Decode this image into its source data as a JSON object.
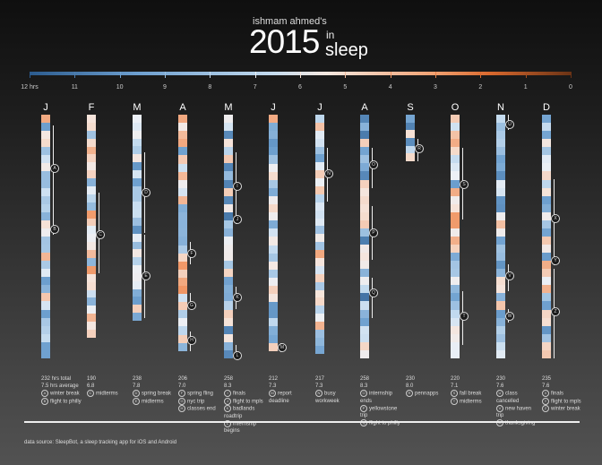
{
  "title": {
    "author": "ishmam ahmed's",
    "year": "2015",
    "in": "in",
    "sleep": "sleep"
  },
  "chart_data": {
    "type": "heatmap",
    "title": "ishmam ahmed's 2015 in sleep",
    "legend": {
      "ticks": [
        "12 hrs",
        "11",
        "10",
        "9",
        "8",
        "7",
        "6",
        "5",
        "4",
        "3",
        "2",
        "1",
        "0"
      ],
      "range": [
        12,
        0
      ]
    },
    "months": [
      {
        "label": "J",
        "total": "232 hrs total",
        "avg": "7.5 hrs average",
        "events": [
          [
            "A",
            "winter break"
          ],
          [
            "B",
            "flight to philly"
          ]
        ]
      },
      {
        "label": "F",
        "total": "190",
        "avg": "6.8",
        "events": [
          [
            "C",
            "midterms"
          ]
        ]
      },
      {
        "label": "M",
        "total": "238",
        "avg": "7.8",
        "events": [
          [
            "D",
            "spring break"
          ],
          [
            "E",
            "midterms"
          ]
        ]
      },
      {
        "label": "A",
        "total": "206",
        "avg": "7.0",
        "events": [
          [
            "F",
            "spring fling"
          ],
          [
            "G",
            "nyc trip"
          ],
          [
            "H",
            "classes end"
          ]
        ]
      },
      {
        "label": "M",
        "total": "258",
        "avg": "8.3",
        "events": [
          [
            "I",
            "finals"
          ],
          [
            "J",
            "flight to mpls"
          ],
          [
            "K",
            "badlands roadtrip"
          ],
          [
            "L",
            "internship begins"
          ]
        ]
      },
      {
        "label": "J",
        "total": "212",
        "avg": "7.3",
        "events": [
          [
            "M",
            "report deadline"
          ]
        ]
      },
      {
        "label": "J",
        "total": "217",
        "avg": "7.3",
        "events": [
          [
            "N",
            "busy workweek"
          ]
        ]
      },
      {
        "label": "A",
        "total": "258",
        "avg": "8.3",
        "events": [
          [
            "O",
            "internship ends"
          ],
          [
            "P",
            "yellowstone trip"
          ],
          [
            "Q",
            "flight to philly"
          ]
        ]
      },
      {
        "label": "S",
        "total": "230",
        "avg": "8.0",
        "events": [
          [
            "R",
            "pennapps"
          ]
        ]
      },
      {
        "label": "O",
        "total": "220",
        "avg": "7.1",
        "events": [
          [
            "S",
            "fall break"
          ],
          [
            "T",
            "midterms"
          ]
        ]
      },
      {
        "label": "N",
        "total": "230",
        "avg": "7.6",
        "events": [
          [
            "U",
            "class cancelled"
          ],
          [
            "V",
            "new haven trip"
          ],
          [
            "W",
            "thanksgiving"
          ]
        ]
      },
      {
        "label": "D",
        "total": "235",
        "avg": "7.6",
        "events": [
          [
            "X",
            "finals"
          ],
          [
            "Y",
            "flight to mpls"
          ],
          [
            "Z",
            "winter break"
          ]
        ]
      }
    ]
  },
  "footer": {
    "source": "data source: SleepBot, a sleep tracking app for iOS and Android"
  }
}
